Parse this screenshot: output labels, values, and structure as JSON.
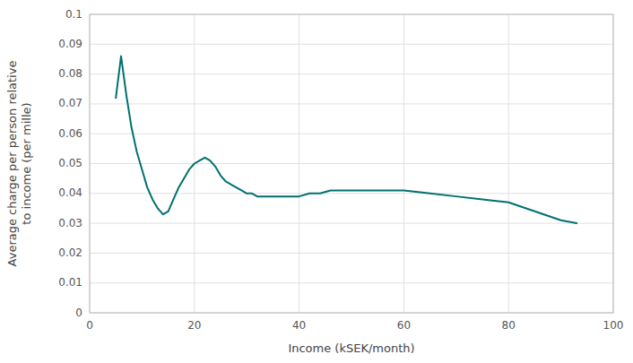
{
  "chart_data": {
    "type": "line",
    "xlabel": "Income (kSEK/month)",
    "ylabel": "Average charge per person relative\nto income (per mille)",
    "x": [
      5,
      6,
      7,
      8,
      9,
      10,
      11,
      12,
      13,
      14,
      15,
      16,
      17,
      18,
      19,
      20,
      21,
      22,
      23,
      24,
      25,
      26,
      27,
      28,
      29,
      30,
      31,
      32,
      33,
      34,
      35,
      36,
      37,
      38,
      39,
      40,
      42,
      44,
      46,
      48,
      50,
      55,
      60,
      65,
      70,
      75,
      80,
      85,
      90,
      93
    ],
    "values": [
      0.072,
      0.086,
      0.073,
      0.062,
      0.054,
      0.048,
      0.042,
      0.038,
      0.035,
      0.033,
      0.034,
      0.038,
      0.042,
      0.045,
      0.048,
      0.05,
      0.051,
      0.052,
      0.051,
      0.049,
      0.046,
      0.044,
      0.043,
      0.042,
      0.041,
      0.04,
      0.04,
      0.039,
      0.039,
      0.039,
      0.039,
      0.039,
      0.039,
      0.039,
      0.039,
      0.039,
      0.04,
      0.04,
      0.041,
      0.041,
      0.041,
      0.041,
      0.041,
      0.04,
      0.039,
      0.038,
      0.037,
      0.034,
      0.031,
      0.03
    ],
    "color": "#007070",
    "xlim": [
      0,
      100
    ],
    "ylim": [
      0,
      0.1
    ],
    "xticks": [
      0,
      20,
      40,
      60,
      80,
      100
    ],
    "yticks": [
      0,
      0.01,
      0.02,
      0.03,
      0.04,
      0.05,
      0.06,
      0.07,
      0.08,
      0.09,
      0.1
    ],
    "grid": true
  }
}
